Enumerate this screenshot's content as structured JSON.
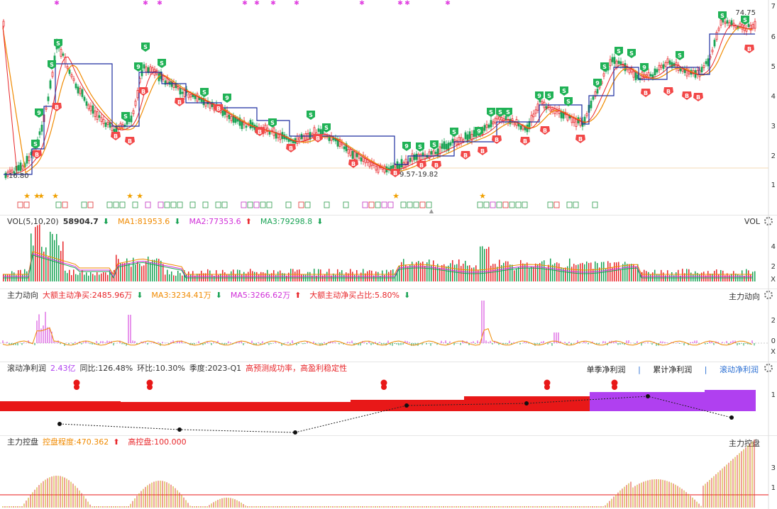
{
  "main_chart": {
    "high_label": "74.75",
    "low_label": "16.80",
    "mid_label": "9.57-19.82",
    "y_ticks": [
      "7",
      "6",
      "5",
      "4",
      "3",
      "2",
      "1"
    ],
    "signals": {
      "buy": "B",
      "sell": "S",
      "nine": "9"
    }
  },
  "vol_panel": {
    "title": "VOL(5,10,20)",
    "value": "58904.7",
    "ma1": "MA1:81953.6",
    "ma2": "MA2:77353.6",
    "ma3": "MA3:79298.8",
    "right_title": "VOL",
    "y_ticks": [
      "4",
      "2",
      "X"
    ]
  },
  "flow_panel": {
    "title": "主力动向",
    "net_buy": "大额主动净买:2485.96万",
    "ma3": "MA3:3234.41万",
    "ma5": "MA5:3266.62万",
    "ratio": "大额主动净买占比:5.80%",
    "right_title": "主力动向",
    "y_ticks": [
      "2",
      "0",
      "X"
    ]
  },
  "profit_panel": {
    "title": "滚动净利润",
    "value": "2.43亿",
    "yoy": "同比:126.48%",
    "qoq": "环比:10.30%",
    "season": "季度:2023-Q1",
    "note": "高预测成功率，高盈利稳定性",
    "tab_single": "单季净利润",
    "tab_cum": "累计净利润",
    "tab_roll": "滚动净利润",
    "sep": "|",
    "y_ticks": [
      "1"
    ]
  },
  "control_panel": {
    "title": "主力控盘",
    "degree": "控盘程度:470.362",
    "high": "高控盘:100.000",
    "right_title": "主力控盘",
    "y_ticks": [
      "3",
      "1"
    ]
  },
  "colors": {
    "up": "#e8262a",
    "down": "#1aa355",
    "ma_orange": "#f08a00",
    "ma_pink": "#d02fd8",
    "navy": "#1f2fa0",
    "purple": "#b040f0",
    "gold": "#c8a000"
  }
}
